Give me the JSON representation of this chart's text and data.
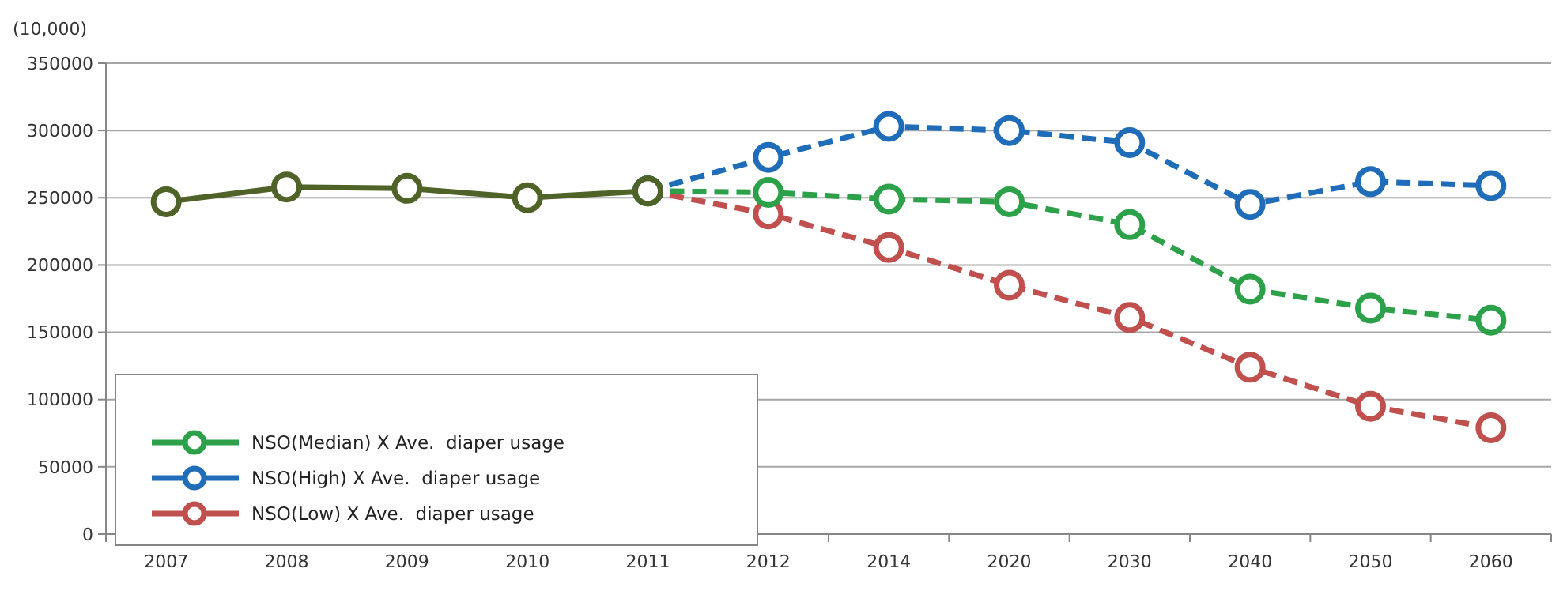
{
  "chart_data": {
    "type": "line",
    "ylabel": "(10,000)",
    "categories": [
      "2007",
      "2008",
      "2009",
      "2010",
      "2011",
      "2012",
      "2014",
      "2020",
      "2030",
      "2040",
      "2050",
      "2060"
    ],
    "ylim": [
      0,
      350000
    ],
    "yticks": [
      0,
      50000,
      100000,
      150000,
      200000,
      250000,
      300000,
      350000
    ],
    "grid": "y",
    "legend": "bottom left",
    "marker": "circle",
    "series": [
      {
        "color": "#4f6228",
        "line_style": "solid",
        "values": [
          247000,
          258000,
          257000,
          250000,
          255000,
          null,
          null,
          null,
          null,
          null,
          null,
          null
        ]
      },
      {
        "name": "NSO(Median) X Ave.  diaper usage",
        "color": "#2ca14a",
        "line_style": "dashed",
        "values": [
          null,
          null,
          null,
          null,
          255000,
          254000,
          249000,
          247000,
          230000,
          182000,
          168000,
          159000
        ]
      },
      {
        "name": "NSO(High) X Ave.  diaper usage",
        "color": "#1f6cb8",
        "line_style": "dashed",
        "values": [
          null,
          null,
          null,
          null,
          255000,
          280000,
          303000,
          300000,
          291000,
          245000,
          262000,
          259000
        ]
      },
      {
        "name": "NSO(Low) X Ave.  diaper usage",
        "color": "#c0504d",
        "line_style": "dashed",
        "values": [
          null,
          null,
          null,
          null,
          255000,
          238000,
          213000,
          185000,
          161000,
          124000,
          95000,
          79000
        ]
      }
    ]
  }
}
